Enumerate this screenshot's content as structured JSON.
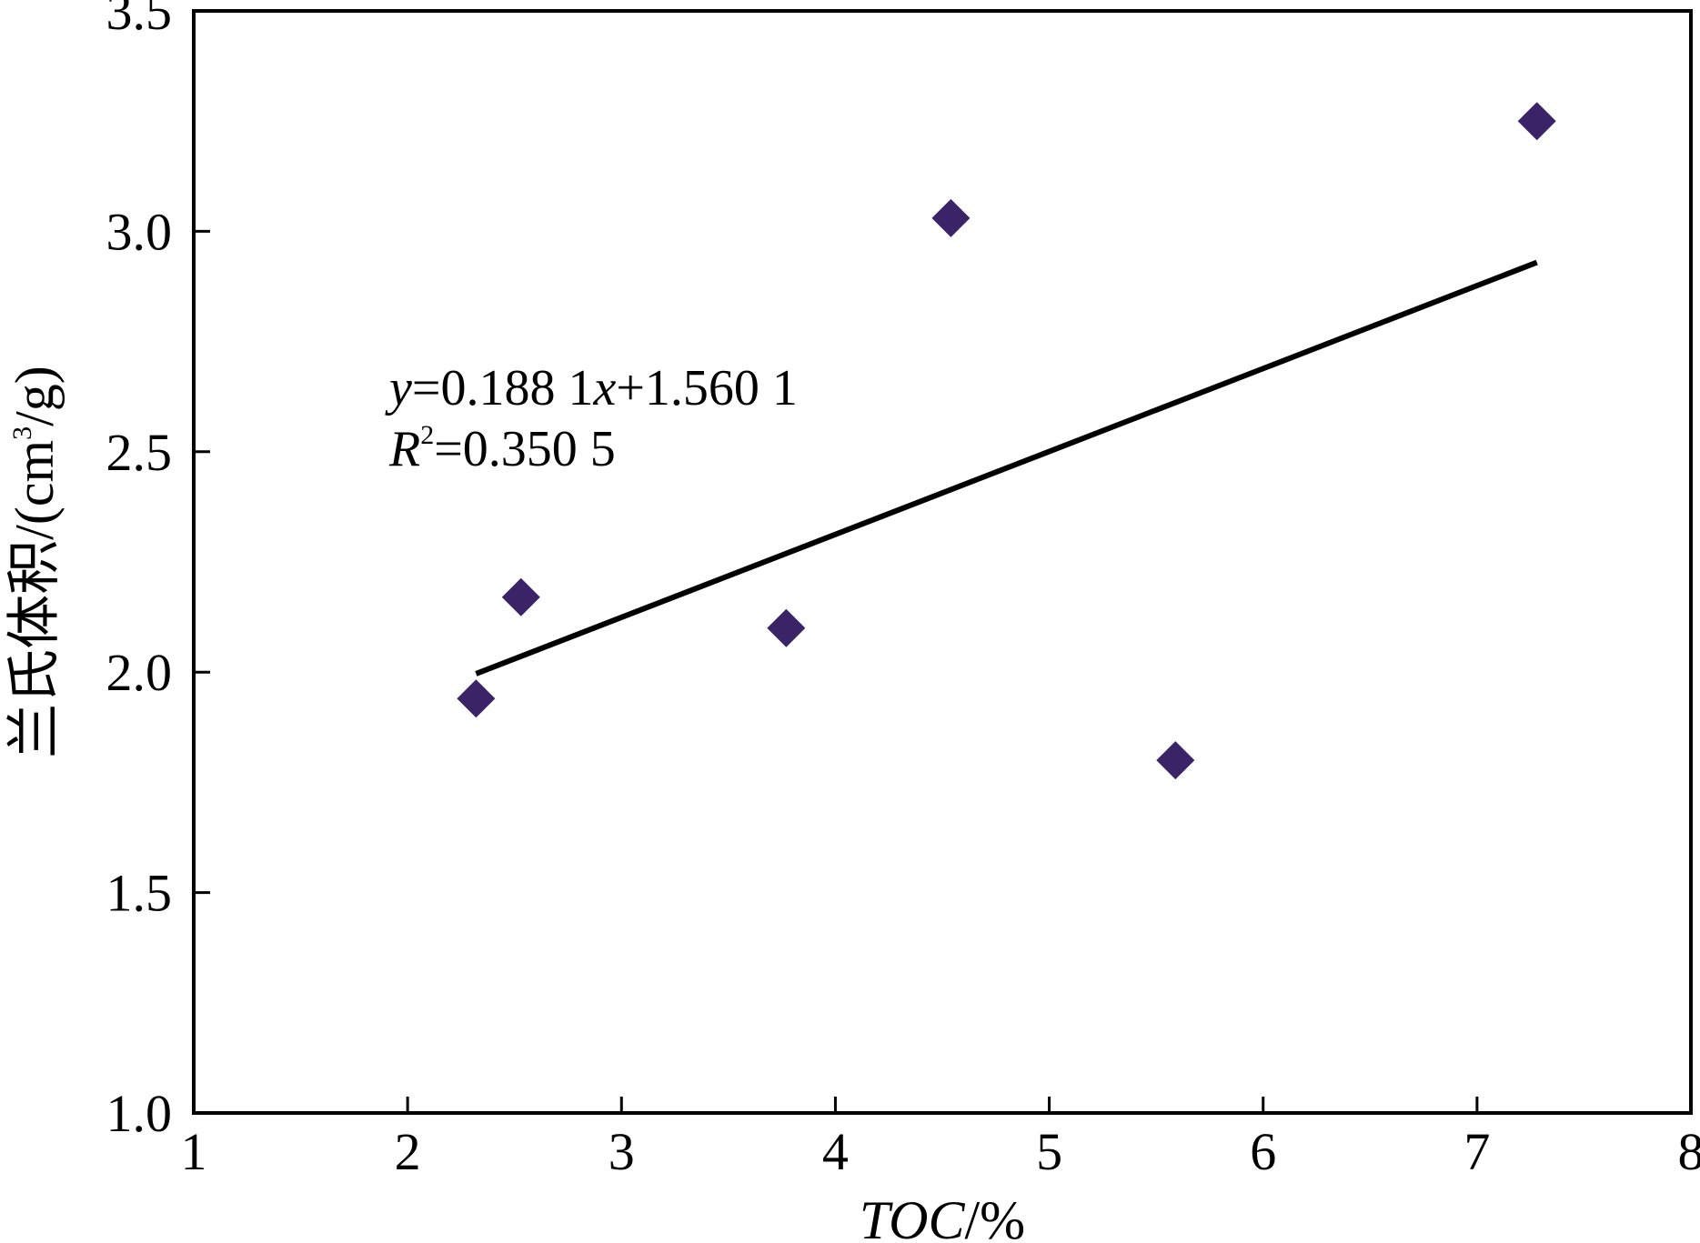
{
  "chart_data": {
    "type": "scatter",
    "xlabel": "TOC/%",
    "ylabel": "兰氏体积/(cm3/g)",
    "xlim": [
      1,
      8
    ],
    "ylim": [
      1.0,
      3.5
    ],
    "x_ticks": [
      "1",
      "2",
      "3",
      "4",
      "5",
      "6",
      "7",
      "8"
    ],
    "y_ticks": [
      "1.0",
      "1.5",
      "2.0",
      "2.5",
      "3.0",
      "3.5"
    ],
    "points": [
      {
        "x": 2.32,
        "y": 1.94
      },
      {
        "x": 2.53,
        "y": 2.17
      },
      {
        "x": 3.77,
        "y": 2.1
      },
      {
        "x": 4.54,
        "y": 3.03
      },
      {
        "x": 5.59,
        "y": 1.8
      },
      {
        "x": 7.28,
        "y": 3.25
      }
    ],
    "trendline": {
      "slope": 0.1881,
      "intercept": 1.5601,
      "x_range": [
        2.32,
        7.28
      ]
    },
    "equation": {
      "line1": {
        "var": "y",
        "rest": "=0.188 1",
        "var2": "x",
        "rest2": "+1.560 1"
      },
      "line2": {
        "var": "R",
        "sup": "2",
        "rest": "=0.350 5"
      }
    },
    "marker_color": "#3b2367",
    "line_color": "#000000",
    "grid": false
  }
}
